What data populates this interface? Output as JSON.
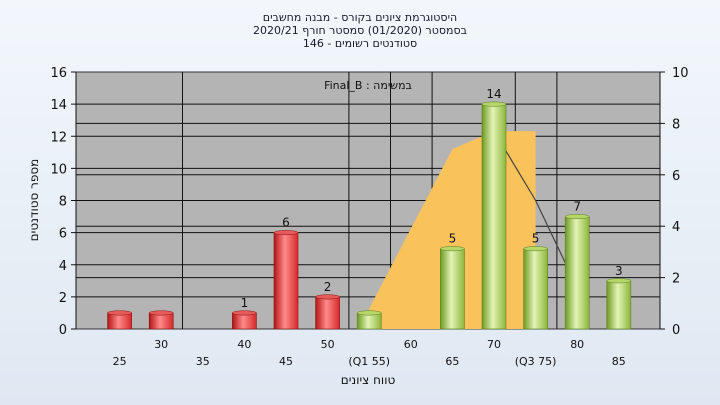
{
  "titles": {
    "line1": "היסטוגרמת ציונים בקורס - מבנה מחשבים",
    "line2": "בסמסטר  (01/2020)  סמסטר חורף  2020/21",
    "line3": "סטודנטים רשומים - 146"
  },
  "colors": {
    "plot_bg": "#b4b4b4",
    "area_fill": "#f9c25a",
    "bar_red": "#d42a2a",
    "bar_green": "#8db63a",
    "line": "#444444"
  },
  "chart_data": {
    "type": "bar",
    "title": "",
    "annotation": "Final_B : במשימה",
    "xlabel": "טווח ציונים",
    "ylabel": "מספר סטודנטים",
    "ylim": [
      0,
      16
    ],
    "y_ticks": [
      "0",
      "2",
      "4",
      "6",
      "8",
      "10",
      "12",
      "14",
      "16"
    ],
    "y2lim": [
      0,
      10
    ],
    "y2_ticks": [
      "0",
      "2",
      "4",
      "6",
      "8",
      "10"
    ],
    "x_tick_labels": [
      {
        "x": 25,
        "label": "25",
        "row": 2
      },
      {
        "x": 30,
        "label": "30",
        "row": 1
      },
      {
        "x": 35,
        "label": "35",
        "row": 2
      },
      {
        "x": 40,
        "label": "40",
        "row": 1
      },
      {
        "x": 45,
        "label": "45",
        "row": 2
      },
      {
        "x": 50,
        "label": "50",
        "row": 1
      },
      {
        "x": 55,
        "label": "(Q1 55)",
        "row": 2
      },
      {
        "x": 60,
        "label": "60",
        "row": 1
      },
      {
        "x": 65,
        "label": "65",
        "row": 2
      },
      {
        "x": 70,
        "label": "70",
        "row": 1
      },
      {
        "x": 75,
        "label": "(Q3 75)",
        "row": 2
      },
      {
        "x": 80,
        "label": "80",
        "row": 1
      },
      {
        "x": 85,
        "label": "85",
        "row": 2
      }
    ],
    "bars": [
      {
        "x": 25,
        "value": 1,
        "color": "red",
        "label": ""
      },
      {
        "x": 30,
        "value": 1,
        "color": "red",
        "label": ""
      },
      {
        "x": 40,
        "value": 1,
        "color": "red",
        "label": "1"
      },
      {
        "x": 45,
        "value": 6,
        "color": "red",
        "label": "6"
      },
      {
        "x": 50,
        "value": 2,
        "color": "red",
        "label": "2"
      },
      {
        "x": 55,
        "value": 1,
        "color": "green",
        "label": ""
      },
      {
        "x": 65,
        "value": 5,
        "color": "green",
        "label": "5"
      },
      {
        "x": 70,
        "value": 14,
        "color": "green",
        "label": "14"
      },
      {
        "x": 75,
        "value": 5,
        "color": "green",
        "label": "5"
      },
      {
        "x": 80,
        "value": 7,
        "color": "green",
        "label": "7"
      },
      {
        "x": 85,
        "value": 3,
        "color": "green",
        "label": "3"
      }
    ],
    "area": {
      "axis": "y2",
      "points": [
        [
          55,
          0
        ],
        [
          55,
          0.8
        ],
        [
          65,
          7
        ],
        [
          70,
          7.7
        ],
        [
          75,
          7.7
        ],
        [
          75,
          0
        ]
      ]
    },
    "line": {
      "axis": "y2",
      "points": [
        [
          70,
          7.7
        ],
        [
          75,
          5
        ],
        [
          80,
          1.6
        ]
      ]
    }
  }
}
